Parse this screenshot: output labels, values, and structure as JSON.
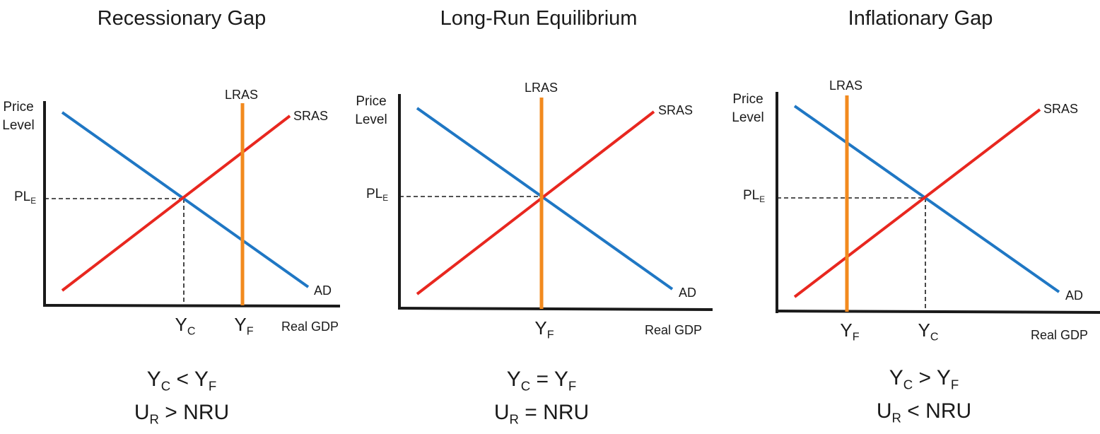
{
  "colors": {
    "ad": "#1f77c4",
    "sras": "#e8271f",
    "lras": "#f28a1e",
    "axis": "#1a1a1a"
  },
  "common": {
    "y_axis_line1": "Price",
    "y_axis_line2": "Level",
    "x_axis": "Real GDP",
    "pl_main": "PL",
    "pl_sub": "E",
    "ad": "AD",
    "sras": "SRAS",
    "lras": "LRAS",
    "y": "Y",
    "c": "C",
    "f": "F",
    "u": "U",
    "r": "R"
  },
  "panels": [
    {
      "title": "Recessionary Gap",
      "relation": "<",
      "unemp_relation": "> NRU"
    },
    {
      "title": "Long-Run Equilibrium",
      "relation": "=",
      "unemp_relation": "= NRU"
    },
    {
      "title": "Inflationary Gap",
      "relation": ">",
      "unemp_relation": "< NRU"
    }
  ]
}
